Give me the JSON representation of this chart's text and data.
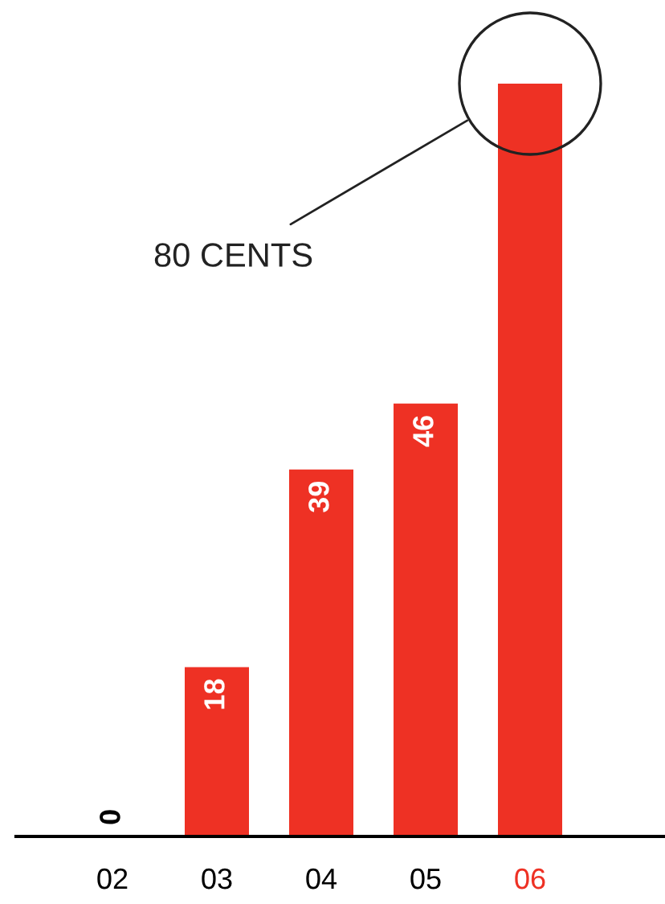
{
  "chart_data": {
    "type": "bar",
    "categories": [
      "02",
      "03",
      "04",
      "05",
      "06"
    ],
    "values": [
      0,
      18,
      39,
      46,
      80
    ],
    "color": "#ee3124",
    "value_labels": [
      "0",
      "18",
      "39",
      "46",
      null
    ],
    "annotations": [
      "80 CENTS"
    ]
  }
}
